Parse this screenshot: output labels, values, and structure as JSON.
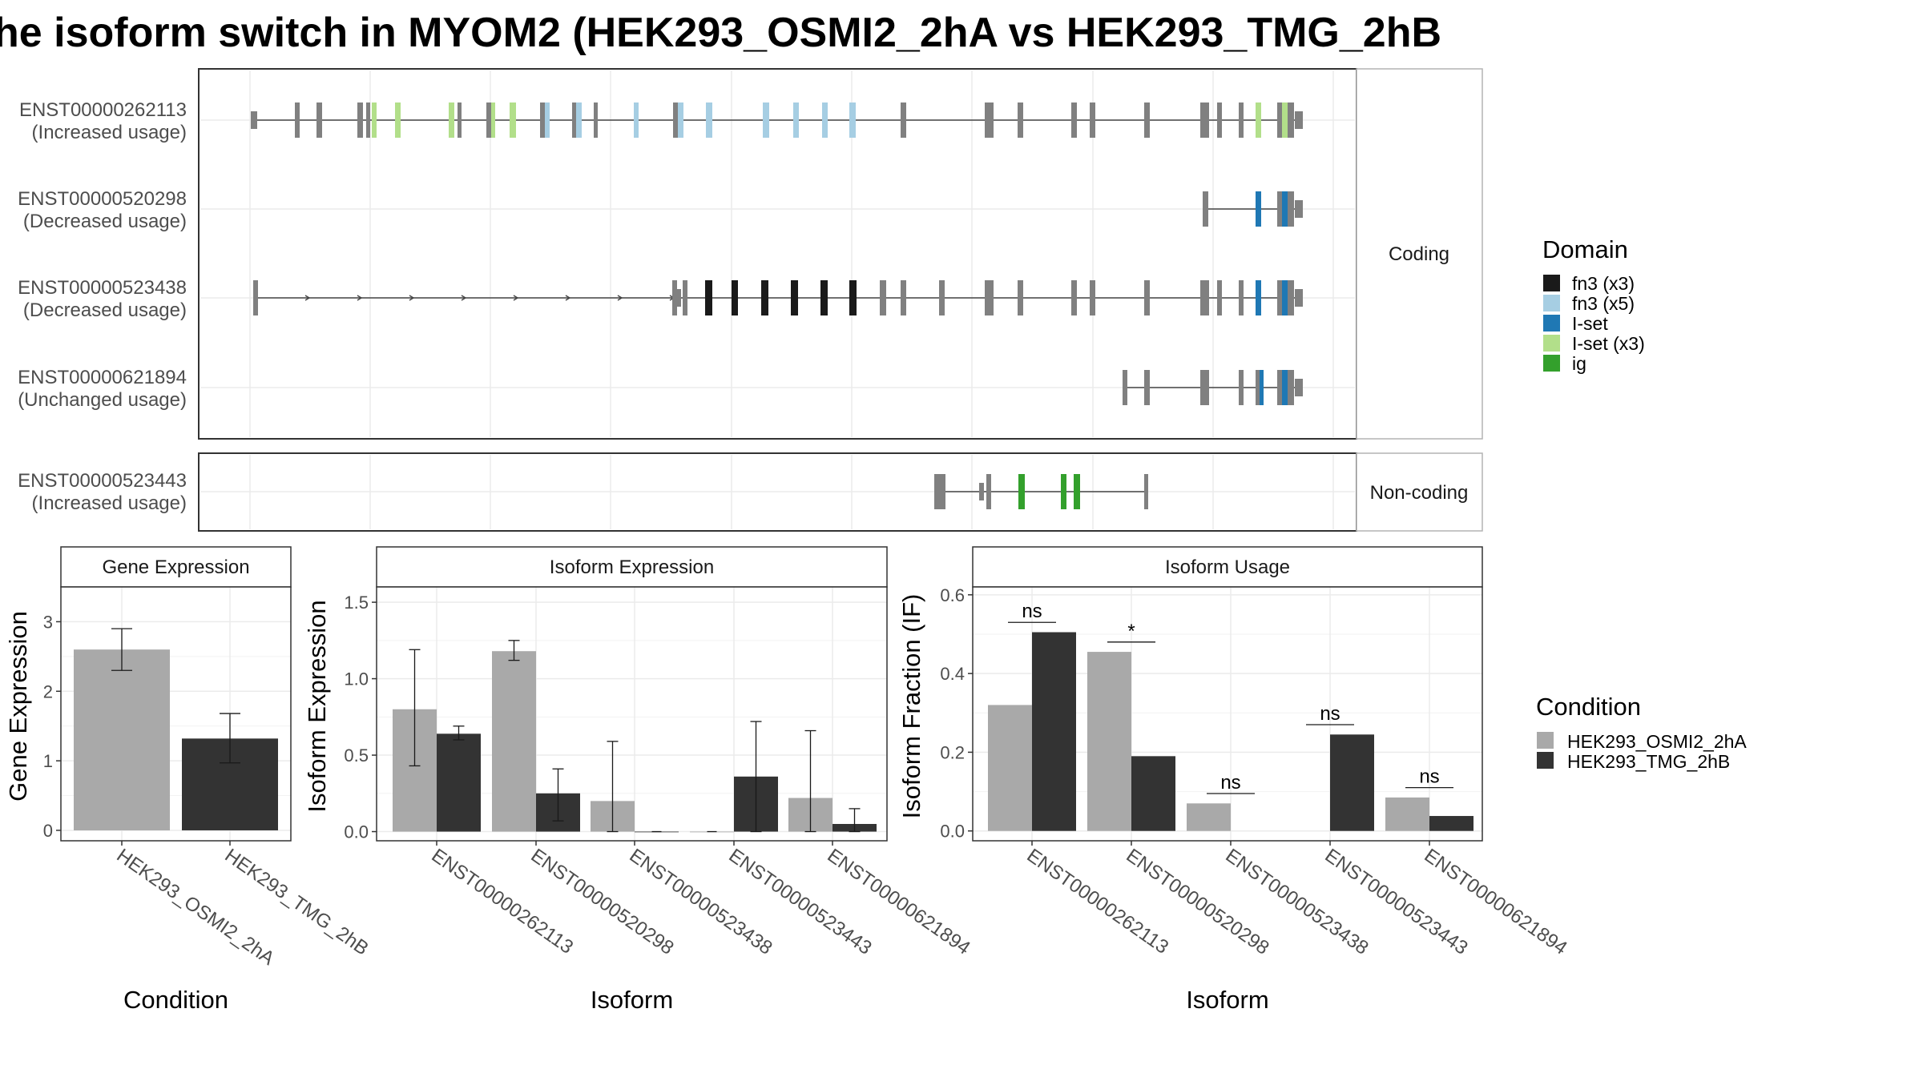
{
  "title": "he isoform switch in MYOM2 (HEK293_OSMI2_2hA vs HEK293_TMG_2hB",
  "colors": {
    "exon": "#808080",
    "fn3_x3": "#1a1a1a",
    "fn3_x5": "#a6cee3",
    "iset": "#1f78b4",
    "iset_x3": "#b2df8a",
    "ig": "#33a02c",
    "cond_a": "#a9a9a9",
    "cond_b": "#333333"
  },
  "transcripts": [
    {
      "id": "ENST00000262113",
      "usage": "(Increased usage)",
      "group": "Coding",
      "label": "ENST00000262113",
      "sub": "(Increased usage)"
    },
    {
      "id": "ENST00000520298",
      "usage": "(Decreased usage)",
      "group": "Coding",
      "label": "ENST00000520298",
      "sub": "(Decreased usage)"
    },
    {
      "id": "ENST00000523438",
      "usage": "(Decreased usage)",
      "group": "Coding",
      "label": "ENST00000523438",
      "sub": "(Decreased usage)"
    },
    {
      "id": "ENST00000621894",
      "usage": "(Unchanged usage)",
      "group": "Coding",
      "label": "ENST00000621894",
      "sub": "(Unchanged usage)"
    },
    {
      "id": "ENST00000523443",
      "usage": "(Increased usage)",
      "group": "Non-coding",
      "label": "ENST00000523443",
      "sub": "(Increased usage)"
    }
  ],
  "facets": {
    "coding": "Coding",
    "noncoding": "Non-coding"
  },
  "legend_domain": {
    "title": "Domain",
    "items": [
      {
        "label": "fn3 (x3)",
        "color": "#1a1a1a"
      },
      {
        "label": "fn3 (x5)",
        "color": "#a6cee3"
      },
      {
        "label": "I-set",
        "color": "#1f78b4"
      },
      {
        "label": "I-set (x3)",
        "color": "#b2df8a"
      },
      {
        "label": "ig",
        "color": "#33a02c"
      }
    ]
  },
  "legend_condition": {
    "title": "Condition",
    "items": [
      {
        "label": "HEK293_OSMI2_2hA",
        "color": "#a9a9a9"
      },
      {
        "label": "HEK293_TMG_2hB",
        "color": "#333333"
      }
    ]
  },
  "chart_data": [
    {
      "type": "bar",
      "title": "Gene Expression",
      "xlabel": "Condition",
      "ylabel": "Gene Expression",
      "categories": [
        "HEK293_OSMI2_2hA",
        "HEK293_TMG_2hB"
      ],
      "values": [
        2.6,
        1.32
      ],
      "err_low": [
        2.3,
        0.97
      ],
      "err_high": [
        2.9,
        1.68
      ],
      "ylim": [
        -0.15,
        3.5
      ],
      "yticks": [
        0,
        1,
        2,
        3
      ]
    },
    {
      "type": "bar",
      "title": "Isoform Expression",
      "xlabel": "Isoform",
      "ylabel": "Isoform Expression",
      "categories": [
        "ENST00000262113",
        "ENST00000520298",
        "ENST00000523438",
        "ENST00000523443",
        "ENST00000621894"
      ],
      "series": [
        {
          "name": "HEK293_OSMI2_2hA",
          "values": [
            0.8,
            1.18,
            0.2,
            0.0,
            0.22
          ],
          "err_low": [
            0.43,
            1.12,
            0.0,
            0.0,
            0.0
          ],
          "err_high": [
            1.19,
            1.25,
            0.59,
            0.0,
            0.66
          ]
        },
        {
          "name": "HEK293_TMG_2hB",
          "values": [
            0.64,
            0.25,
            0.0,
            0.36,
            0.05
          ],
          "err_low": [
            0.6,
            0.07,
            0.0,
            0.0,
            0.0
          ],
          "err_high": [
            0.69,
            0.41,
            0.0,
            0.72,
            0.15
          ]
        }
      ],
      "ylim": [
        -0.06,
        1.6
      ],
      "yticks": [
        0.0,
        0.5,
        1.0,
        1.5
      ]
    },
    {
      "type": "bar",
      "title": "Isoform Usage",
      "xlabel": "Isoform",
      "ylabel": "Isoform Fraction (IF)",
      "categories": [
        "ENST00000262113",
        "ENST00000520298",
        "ENST00000523438",
        "ENST00000523443",
        "ENST00000621894"
      ],
      "series": [
        {
          "name": "HEK293_OSMI2_2hA",
          "values": [
            0.32,
            0.455,
            0.07,
            0.0,
            0.085
          ]
        },
        {
          "name": "HEK293_TMG_2hB",
          "values": [
            0.505,
            0.19,
            0.0,
            0.245,
            0.038
          ]
        }
      ],
      "significance": [
        "ns",
        "*",
        "ns",
        "ns",
        "ns"
      ],
      "sig_y": [
        0.53,
        0.48,
        0.095,
        0.27,
        0.11
      ],
      "ylim": [
        -0.025,
        0.62
      ],
      "yticks": [
        0.0,
        0.2,
        0.4,
        0.6
      ]
    }
  ]
}
